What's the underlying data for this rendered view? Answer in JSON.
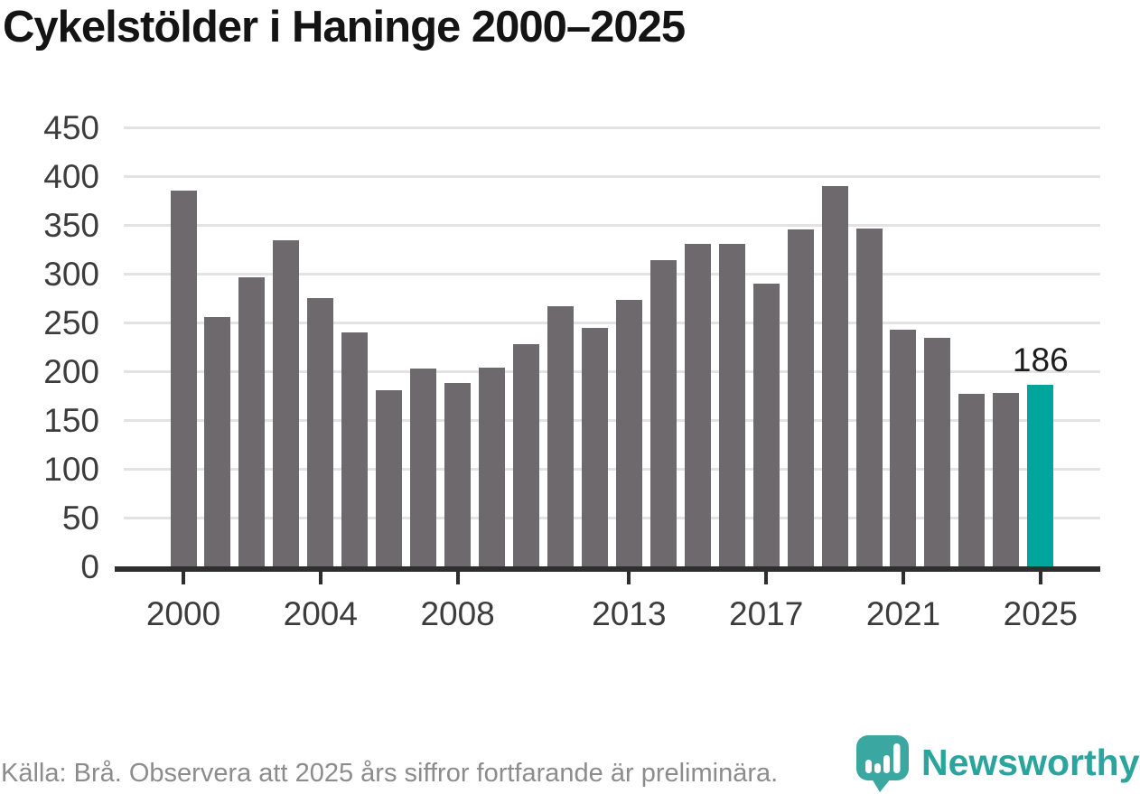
{
  "title": "Cykelstölder i Haninge 2000–2025",
  "chart_data": {
    "type": "bar",
    "categories": [
      2000,
      2001,
      2002,
      2003,
      2004,
      2005,
      2006,
      2007,
      2008,
      2009,
      2010,
      2011,
      2012,
      2013,
      2014,
      2015,
      2016,
      2017,
      2018,
      2019,
      2020,
      2021,
      2022,
      2023,
      2024,
      2025
    ],
    "values": [
      385,
      256,
      296,
      334,
      275,
      240,
      181,
      203,
      188,
      204,
      228,
      267,
      244,
      273,
      314,
      331,
      331,
      290,
      345,
      390,
      346,
      243,
      234,
      177,
      178,
      186
    ],
    "title": "Cykelstölder i Haninge 2000–2025",
    "xlabel": "",
    "ylabel": "",
    "ylim": [
      0,
      450
    ],
    "y_ticks": [
      0,
      50,
      100,
      150,
      200,
      250,
      300,
      350,
      400,
      450
    ],
    "x_tick_years": [
      2000,
      2004,
      2008,
      2013,
      2017,
      2021,
      2025
    ],
    "grid": true,
    "legend": "none",
    "highlight_year": 2025,
    "highlight_index": 25,
    "highlight_label": "186",
    "bar_color": "#6d696d",
    "highlight_color": "#00a69b"
  },
  "colors": {
    "grid": "#e3e3e3",
    "axis": "#2e2e2e",
    "text": "#3c3c3c",
    "title": "#141414",
    "source": "#8c8c8c",
    "brand_teal": "#2aa49d",
    "logo_pin": "#3aa8a0"
  },
  "footer": {
    "source_note": "Källa: Brå. Observera att 2025 års siffror fortfarande är preliminära.",
    "brand_name": "Newsworthy"
  }
}
